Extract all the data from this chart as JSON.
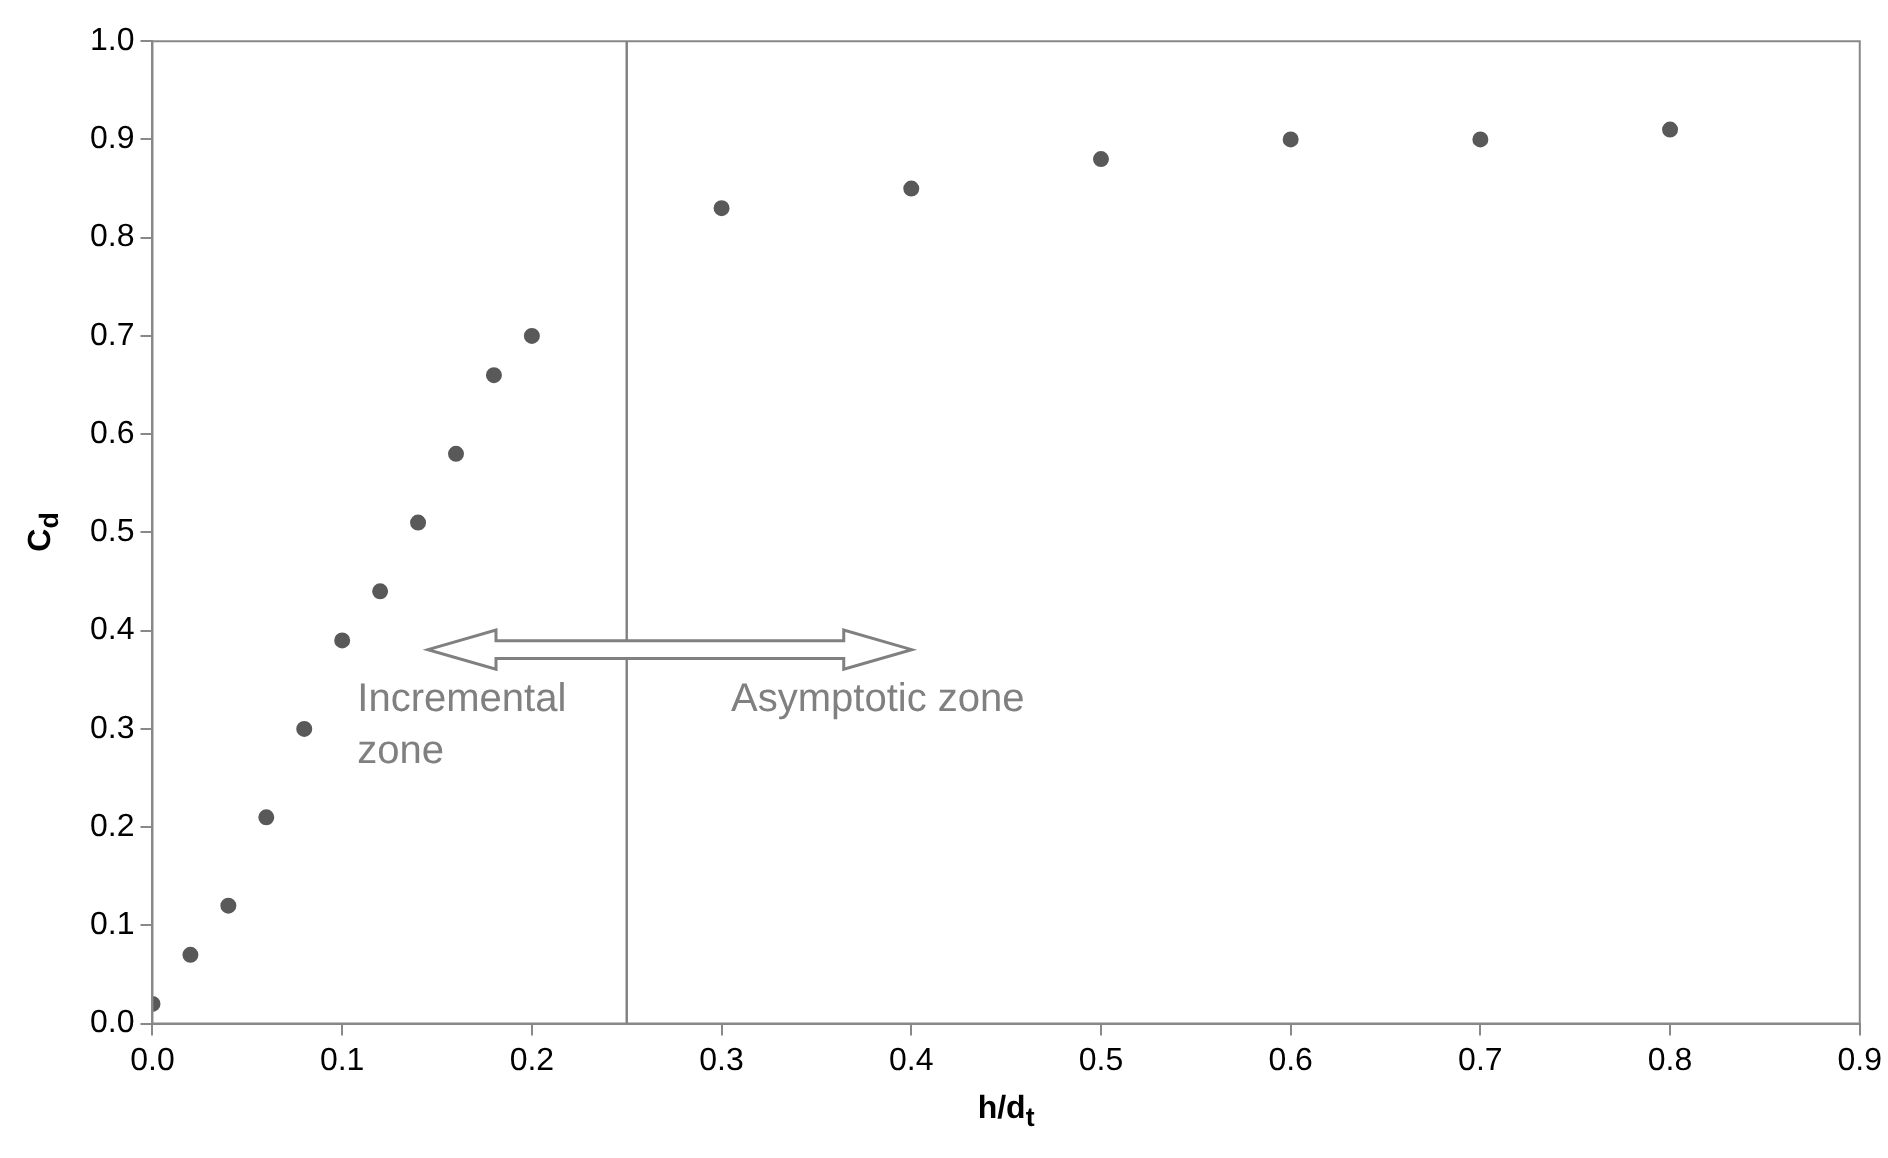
{
  "chart_data": {
    "type": "scatter",
    "xlabel": "h/d$_{t}$",
    "ylabel": "C$_{d}$",
    "x": [
      0.0,
      0.02,
      0.04,
      0.06,
      0.08,
      0.1,
      0.12,
      0.14,
      0.16,
      0.18,
      0.2,
      0.3,
      0.4,
      0.5,
      0.6,
      0.7,
      0.8
    ],
    "series": [
      {
        "color": "#595959",
        "values": [
          0.02,
          0.07,
          0.12,
          0.21,
          0.3,
          0.39,
          0.44,
          0.51,
          0.58,
          0.66,
          0.7,
          0.83,
          0.85,
          0.88,
          0.9,
          0.9,
          0.91
        ]
      }
    ],
    "xlim": [
      0,
      0.9
    ],
    "xticks": [
      {
        "value": 0,
        "label": "0.0"
      },
      0.1,
      0.2,
      0.3,
      0.4,
      0.5,
      0.6,
      0.7,
      0.8,
      0.9
    ],
    "ylim": [
      0,
      1
    ],
    "yticks": [
      {
        "value": 0,
        "label": "0.0"
      },
      0.1,
      0.2,
      0.3,
      0.4,
      0.5,
      0.6,
      0.7,
      0.8,
      0.9,
      {
        "value": 1,
        "label": "1.0"
      }
    ],
    "ref_lines": [
      {
        "axis": "x",
        "value": 0.25,
        "color": "#808080"
      }
    ],
    "annotations": [
      "Incremental zone",
      "Asymptotic zone"
    ],
    "grid": false,
    "legend": false,
    "marker": "circle"
  }
}
